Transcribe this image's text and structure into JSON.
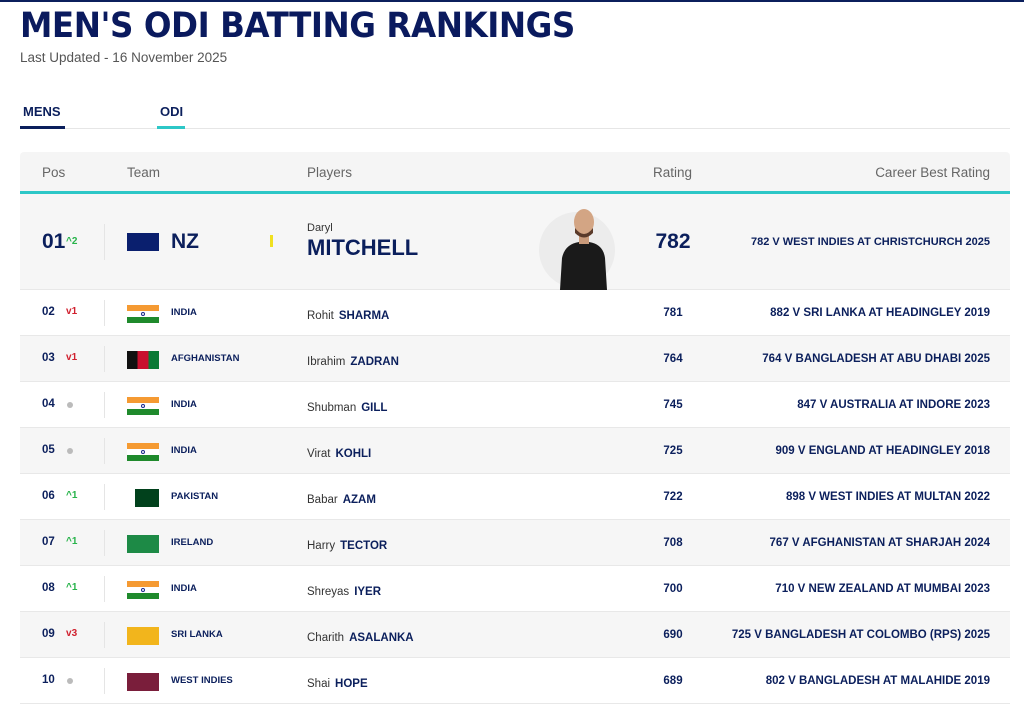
{
  "page": {
    "title": "MEN'S ODI BATTING RANKINGS",
    "last_updated": "Last Updated - 16 November 2025"
  },
  "tabs": [
    {
      "label": "MENS",
      "active_color": "#0b1f5c"
    },
    {
      "label": "ODI",
      "active_color": "#2dc7c7"
    }
  ],
  "table": {
    "headers": {
      "pos": "Pos",
      "team": "Team",
      "players": "Players",
      "rating": "Rating",
      "career_best": "Career Best Rating"
    },
    "rows": [
      {
        "pos": "01",
        "change": "2",
        "trend": "up",
        "flag": "nz",
        "team": "NZ",
        "first_name": "Daryl",
        "last_name": "MITCHELL",
        "rating": "782",
        "career_best": "782 V WEST INDIES AT CHRISTCHURCH 2025"
      },
      {
        "pos": "02",
        "change": "1",
        "trend": "down",
        "flag": "in",
        "team": "INDIA",
        "first_name": "Rohit",
        "last_name": "SHARMA",
        "rating": "781",
        "career_best": "882 V SRI LANKA AT HEADINGLEY 2019"
      },
      {
        "pos": "03",
        "change": "1",
        "trend": "down",
        "flag": "af",
        "team": "AFGHANISTAN",
        "first_name": "Ibrahim",
        "last_name": "ZADRAN",
        "rating": "764",
        "career_best": "764 V BANGLADESH AT ABU DHABI 2025"
      },
      {
        "pos": "04",
        "change": "",
        "trend": "same",
        "flag": "in",
        "team": "INDIA",
        "first_name": "Shubman",
        "last_name": "GILL",
        "rating": "745",
        "career_best": "847 V AUSTRALIA AT INDORE 2023"
      },
      {
        "pos": "05",
        "change": "",
        "trend": "same",
        "flag": "in",
        "team": "INDIA",
        "first_name": "Virat",
        "last_name": "KOHLI",
        "rating": "725",
        "career_best": "909 V ENGLAND AT HEADINGLEY 2018"
      },
      {
        "pos": "06",
        "change": "1",
        "trend": "up",
        "flag": "pk",
        "team": "PAKISTAN",
        "first_name": "Babar",
        "last_name": "AZAM",
        "rating": "722",
        "career_best": "898 V WEST INDIES AT MULTAN 2022"
      },
      {
        "pos": "07",
        "change": "1",
        "trend": "up",
        "flag": "ie",
        "team": "IRELAND",
        "first_name": "Harry",
        "last_name": "TECTOR",
        "rating": "708",
        "career_best": "767 V AFGHANISTAN AT SHARJAH 2024"
      },
      {
        "pos": "08",
        "change": "1",
        "trend": "up",
        "flag": "in",
        "team": "INDIA",
        "first_name": "Shreyas",
        "last_name": "IYER",
        "rating": "700",
        "career_best": "710 V NEW ZEALAND AT MUMBAI 2023"
      },
      {
        "pos": "09",
        "change": "3",
        "trend": "down",
        "flag": "sl",
        "team": "SRI LANKA",
        "first_name": "Charith",
        "last_name": "ASALANKA",
        "rating": "690",
        "career_best": "725 V BANGLADESH AT COLOMBO (RPS) 2025"
      },
      {
        "pos": "10",
        "change": "",
        "trend": "same",
        "flag": "wi",
        "team": "WEST INDIES",
        "first_name": "Shai",
        "last_name": "HOPE",
        "rating": "689",
        "career_best": "802 V BANGLADESH AT MALAHIDE 2019"
      }
    ]
  },
  "colors": {
    "navy": "#0b1f5c",
    "accent": "#2dc7c7",
    "up": "#27b34a",
    "down": "#d0202e"
  }
}
